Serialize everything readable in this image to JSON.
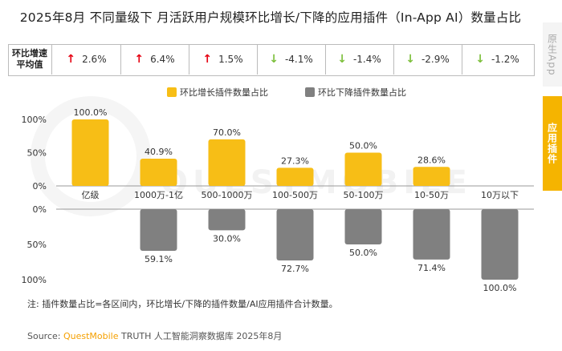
{
  "title": "2025年8月 不同量级下 月活跃用户规模环比增长/下降的应用插件（In-App AI）数量占比",
  "avg_label_line1": "环比增速",
  "avg_label_line2": "平均值",
  "avg_values": [
    {
      "text": "2.6%",
      "dir": "up"
    },
    {
      "text": "6.4%",
      "dir": "up"
    },
    {
      "text": "1.5%",
      "dir": "up"
    },
    {
      "text": "-4.1%",
      "dir": "down"
    },
    {
      "text": "-1.4%",
      "dir": "down"
    },
    {
      "text": "-2.9%",
      "dir": "down"
    },
    {
      "text": "-1.2%",
      "dir": "down"
    }
  ],
  "colors": {
    "up_bar": "#f7be16",
    "down_bar": "#808080",
    "up_arrow": "#e60012",
    "down_arrow": "#7cbf3b"
  },
  "side_tabs": {
    "inactive": "原生App",
    "active": "应用插件"
  },
  "watermark": "QUESTMOBILE",
  "note": "注:    插件数量占比=各区间内，环比增长/下降的插件数量/AI应用插件合计数量。",
  "source_prefix": "Source: ",
  "source_brand": "QuestMobile",
  "source_rest": " TRUTH 人工智能洞察数据库 2025年8月",
  "chart_data": {
    "type": "bar",
    "categories": [
      "亿级",
      "1000万-1亿",
      "500-1000万",
      "100-500万",
      "50-100万",
      "10-50万",
      "10万以下"
    ],
    "series": [
      {
        "name": "环比增长插件数量占比",
        "values": [
          100.0,
          40.9,
          70.0,
          27.3,
          50.0,
          28.6,
          null
        ],
        "labels": [
          "100.0%",
          "40.9%",
          "70.0%",
          "27.3%",
          "50.0%",
          "28.6%",
          ""
        ]
      },
      {
        "name": "环比下降插件数量占比",
        "values": [
          null,
          59.1,
          30.0,
          72.7,
          50.0,
          71.4,
          100.0
        ],
        "labels": [
          "",
          "59.1%",
          "30.0%",
          "72.7%",
          "50.0%",
          "71.4%",
          "100.0%"
        ]
      }
    ],
    "upper_ticks": [
      "100%",
      "50%",
      "0%"
    ],
    "lower_ticks": [
      "0%",
      "50%",
      "100%"
    ],
    "ylim": [
      0,
      100
    ]
  }
}
